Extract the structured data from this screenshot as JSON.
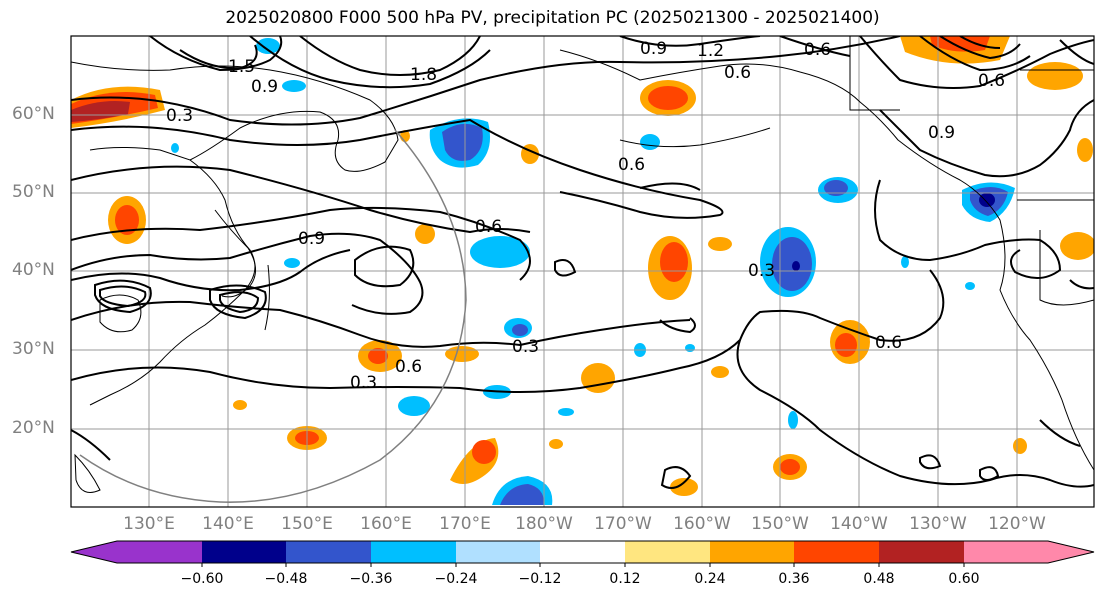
{
  "title": "2025020800 F000 500 hPa PV, precipitation PC (2025021300 - 2025021400)",
  "map": {
    "lat_labels": [
      "60°N",
      "50°N",
      "40°N",
      "30°N",
      "20°N"
    ],
    "lon_labels": [
      "130°E",
      "140°E",
      "150°E",
      "160°E",
      "170°E",
      "180°W",
      "170°W",
      "160°W",
      "150°W",
      "140°W",
      "130°W",
      "120°W"
    ],
    "contour_labels": [
      "0.3",
      "0.6",
      "0.9",
      "1.2",
      "1.5",
      "1.8"
    ]
  },
  "colorbar": {
    "ticks": [
      "−0.60",
      "−0.48",
      "−0.36",
      "−0.24",
      "−0.12",
      "0.12",
      "0.24",
      "0.36",
      "0.48",
      "0.60"
    ],
    "colors": [
      "#9933cc",
      "#00008b",
      "#3355cc",
      "#00bfff",
      "#b0e0ff",
      "#ffffff",
      "#ffe680",
      "#ffa500",
      "#ff4500",
      "#b22222",
      "#ff88aa"
    ]
  }
}
